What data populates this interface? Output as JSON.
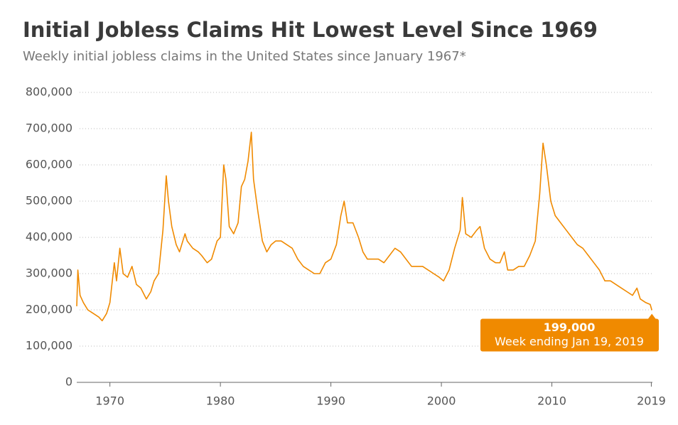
{
  "chart_data": {
    "type": "line",
    "title": "Initial Jobless Claims Hit Lowest Level Since 1969",
    "subtitle": "Weekly initial jobless claims in the United States since January 1967*",
    "x": [
      1967.0,
      1967.1,
      1967.3,
      1967.6,
      1968.0,
      1968.5,
      1969.0,
      1969.3,
      1969.7,
      1970.0,
      1970.4,
      1970.6,
      1970.9,
      1971.2,
      1971.6,
      1972.0,
      1972.4,
      1972.8,
      1973.3,
      1973.7,
      1974.0,
      1974.4,
      1974.8,
      1975.1,
      1975.3,
      1975.6,
      1976.0,
      1976.3,
      1976.8,
      1977.0,
      1977.5,
      1978.0,
      1978.3,
      1978.8,
      1979.2,
      1979.7,
      1980.0,
      1980.3,
      1980.5,
      1980.8,
      1981.2,
      1981.6,
      1981.9,
      1982.2,
      1982.5,
      1982.8,
      1983.0,
      1983.4,
      1983.8,
      1984.2,
      1984.6,
      1985.0,
      1985.5,
      1986.0,
      1986.5,
      1987.0,
      1987.5,
      1988.0,
      1988.5,
      1989.0,
      1989.5,
      1990.0,
      1990.5,
      1990.9,
      1991.2,
      1991.5,
      1992.0,
      1992.5,
      1992.9,
      1993.3,
      1993.8,
      1994.3,
      1994.8,
      1995.3,
      1995.8,
      1996.3,
      1996.8,
      1997.3,
      1997.8,
      1998.3,
      1998.8,
      1999.3,
      1999.8,
      2000.2,
      2000.7,
      2001.2,
      2001.7,
      2001.9,
      2002.2,
      2002.7,
      2003.2,
      2003.5,
      2003.9,
      2004.4,
      2004.9,
      2005.3,
      2005.7,
      2006.0,
      2006.5,
      2007.0,
      2007.5,
      2008.0,
      2008.5,
      2008.9,
      2009.2,
      2009.5,
      2009.9,
      2010.3,
      2010.8,
      2011.3,
      2011.8,
      2012.3,
      2012.8,
      2013.3,
      2013.8,
      2014.3,
      2014.8,
      2015.3,
      2015.8,
      2016.3,
      2016.8,
      2017.3,
      2017.7,
      2018.0,
      2018.5,
      2018.9,
      2019.05
    ],
    "series": [
      {
        "name": "Initial jobless claims",
        "color": "#f08a00",
        "values": [
          210000,
          310000,
          240000,
          220000,
          200000,
          190000,
          180000,
          170000,
          190000,
          220000,
          330000,
          280000,
          370000,
          300000,
          290000,
          320000,
          270000,
          260000,
          230000,
          250000,
          280000,
          300000,
          420000,
          570000,
          500000,
          430000,
          380000,
          360000,
          410000,
          390000,
          370000,
          360000,
          350000,
          330000,
          340000,
          390000,
          400000,
          600000,
          560000,
          430000,
          410000,
          440000,
          540000,
          560000,
          610000,
          690000,
          560000,
          470000,
          390000,
          360000,
          380000,
          390000,
          390000,
          380000,
          370000,
          340000,
          320000,
          310000,
          300000,
          300000,
          330000,
          340000,
          380000,
          460000,
          500000,
          440000,
          440000,
          400000,
          360000,
          340000,
          340000,
          340000,
          330000,
          350000,
          370000,
          360000,
          340000,
          320000,
          320000,
          320000,
          310000,
          300000,
          290000,
          280000,
          310000,
          370000,
          420000,
          510000,
          410000,
          400000,
          420000,
          430000,
          370000,
          340000,
          330000,
          330000,
          360000,
          310000,
          310000,
          320000,
          320000,
          350000,
          390000,
          520000,
          660000,
          600000,
          500000,
          460000,
          440000,
          420000,
          400000,
          380000,
          370000,
          350000,
          330000,
          310000,
          280000,
          280000,
          270000,
          260000,
          250000,
          240000,
          260000,
          230000,
          220000,
          215000,
          199000
        ]
      }
    ],
    "annotation": {
      "value": 199000,
      "label": "199,000",
      "text": "Week ending Jan 19, 2019"
    },
    "xlim": [
      1967,
      2019.1
    ],
    "xticks": [
      1970,
      1980,
      1990,
      2000,
      2010,
      2019
    ],
    "ylim": [
      0,
      800000
    ],
    "yticks": [
      0,
      {
        "value": 100000,
        "label": "100,000"
      },
      {
        "value": 200000,
        "label": "200,000"
      },
      {
        "value": 300000,
        "label": "300,000"
      },
      {
        "value": 400000,
        "label": "400,000"
      },
      {
        "value": 500000,
        "label": "500,000"
      },
      {
        "value": 600000,
        "label": "600,000"
      },
      {
        "value": 700000,
        "label": "700,000"
      },
      {
        "value": 800000,
        "label": "800,000"
      }
    ],
    "grid": true
  }
}
